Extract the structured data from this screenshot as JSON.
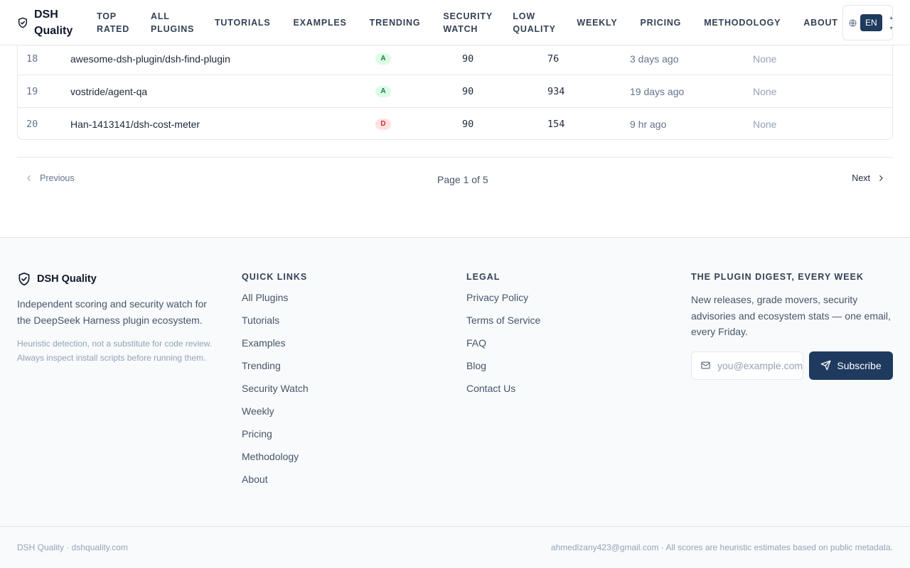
{
  "header": {
    "brand": "DSH Quality",
    "nav": [
      {
        "label": "TOP RATED"
      },
      {
        "label": "ALL PLUGINS"
      },
      {
        "label": "TUTORIALS"
      },
      {
        "label": "EXAMPLES"
      },
      {
        "label": "TRENDING"
      },
      {
        "label": "SECURITY WATCH"
      },
      {
        "label": "LOW QUALITY"
      },
      {
        "label": "WEEKLY"
      },
      {
        "label": "PRICING"
      },
      {
        "label": "METHODOLOGY"
      },
      {
        "label": "ABOUT"
      }
    ],
    "language": "EN",
    "icons": {
      "brand": "shield-check-icon",
      "globe": "globe-icon"
    }
  },
  "table": {
    "rows": [
      {
        "rank": "18",
        "name": "awesome-dsh-plugin/dsh-find-plugin",
        "grade": "A",
        "grade_color": "#15803d",
        "score": "90",
        "stars": "76",
        "updated": "3 days ago",
        "flags": "None"
      },
      {
        "rank": "19",
        "name": "vostride/agent-qa",
        "grade": "A",
        "grade_color": "#15803d",
        "score": "90",
        "stars": "934",
        "updated": "19 days ago",
        "flags": "None"
      },
      {
        "rank": "20",
        "name": "Han-1413141/dsh-cost-meter",
        "grade": "D",
        "grade_color": "#dc2626",
        "score": "90",
        "stars": "154",
        "updated": "9 hr ago",
        "flags": "None"
      }
    ]
  },
  "pagination": {
    "previous": "Previous",
    "page_info": "Page 1 of 5",
    "next": "Next"
  },
  "footer": {
    "brand": "DSH Quality",
    "description": "Independent scoring and security watch for the DeepSeek Harness plugin ecosystem.",
    "note": "Heuristic detection, not a substitute for code review. Always inspect install scripts before running them.",
    "quick_links": {
      "heading": "QUICK LINKS",
      "items": [
        "All Plugins",
        "Tutorials",
        "Examples",
        "Trending",
        "Security Watch",
        "Weekly",
        "Pricing",
        "Methodology",
        "About"
      ]
    },
    "legal": {
      "heading": "LEGAL",
      "items": [
        "Privacy Policy",
        "Terms of Service",
        "FAQ",
        "Blog",
        "Contact Us"
      ]
    },
    "digest": {
      "heading": "THE PLUGIN DIGEST, EVERY WEEK",
      "text": "New releases, grade movers, security advisories and ecosystem stats — one email, every Friday.",
      "email_placeholder": "you@example.com",
      "subscribe": "Subscribe"
    },
    "bottom_left": "DSH Quality · dshquality.com",
    "bottom_right": "ahmedlzany423@gmail.com · All scores are heuristic estimates based on public metadata."
  },
  "colors": {
    "accent": "#1e3a5f",
    "grade_good_bg": "#dcfce7",
    "grade_bad_bg": "#fee2e2"
  }
}
